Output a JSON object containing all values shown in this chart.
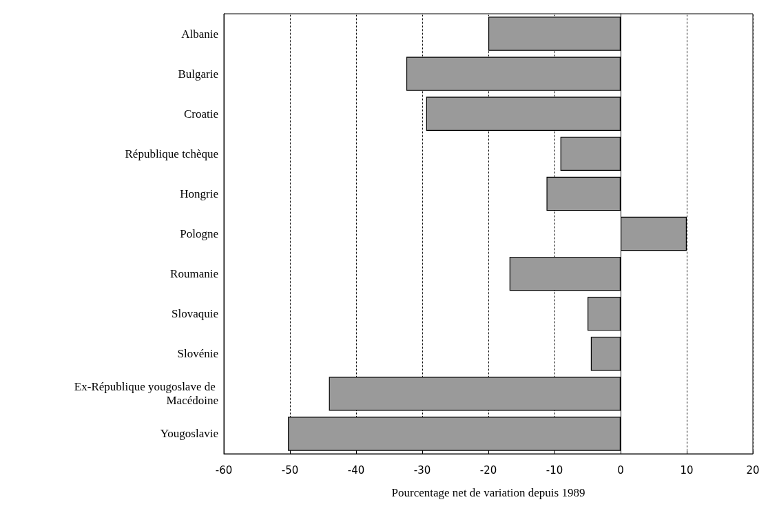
{
  "chart_data": {
    "type": "bar",
    "orientation": "horizontal",
    "xlabel": "Pourcentage net de variation depuis 1989",
    "categories": [
      "Albanie",
      "Bulgarie",
      "Croatie",
      "République tchèque",
      "Hongrie",
      "Pologne",
      "Roumanie",
      "Slovaquie",
      "Slovénie",
      "Ex-République yougoslave de Macédoine",
      "Yougoslavie"
    ],
    "values": [
      -20,
      -32.4,
      -29.4,
      -9.1,
      -11.2,
      10,
      -16.8,
      -5,
      -4.5,
      -44.1,
      -50.3
    ],
    "color": "#9a9a9a",
    "xlim": [
      -60,
      20
    ],
    "xticks": [
      -60,
      -50,
      -40,
      -30,
      -20,
      -10,
      0,
      10,
      20
    ],
    "grid": "x"
  }
}
